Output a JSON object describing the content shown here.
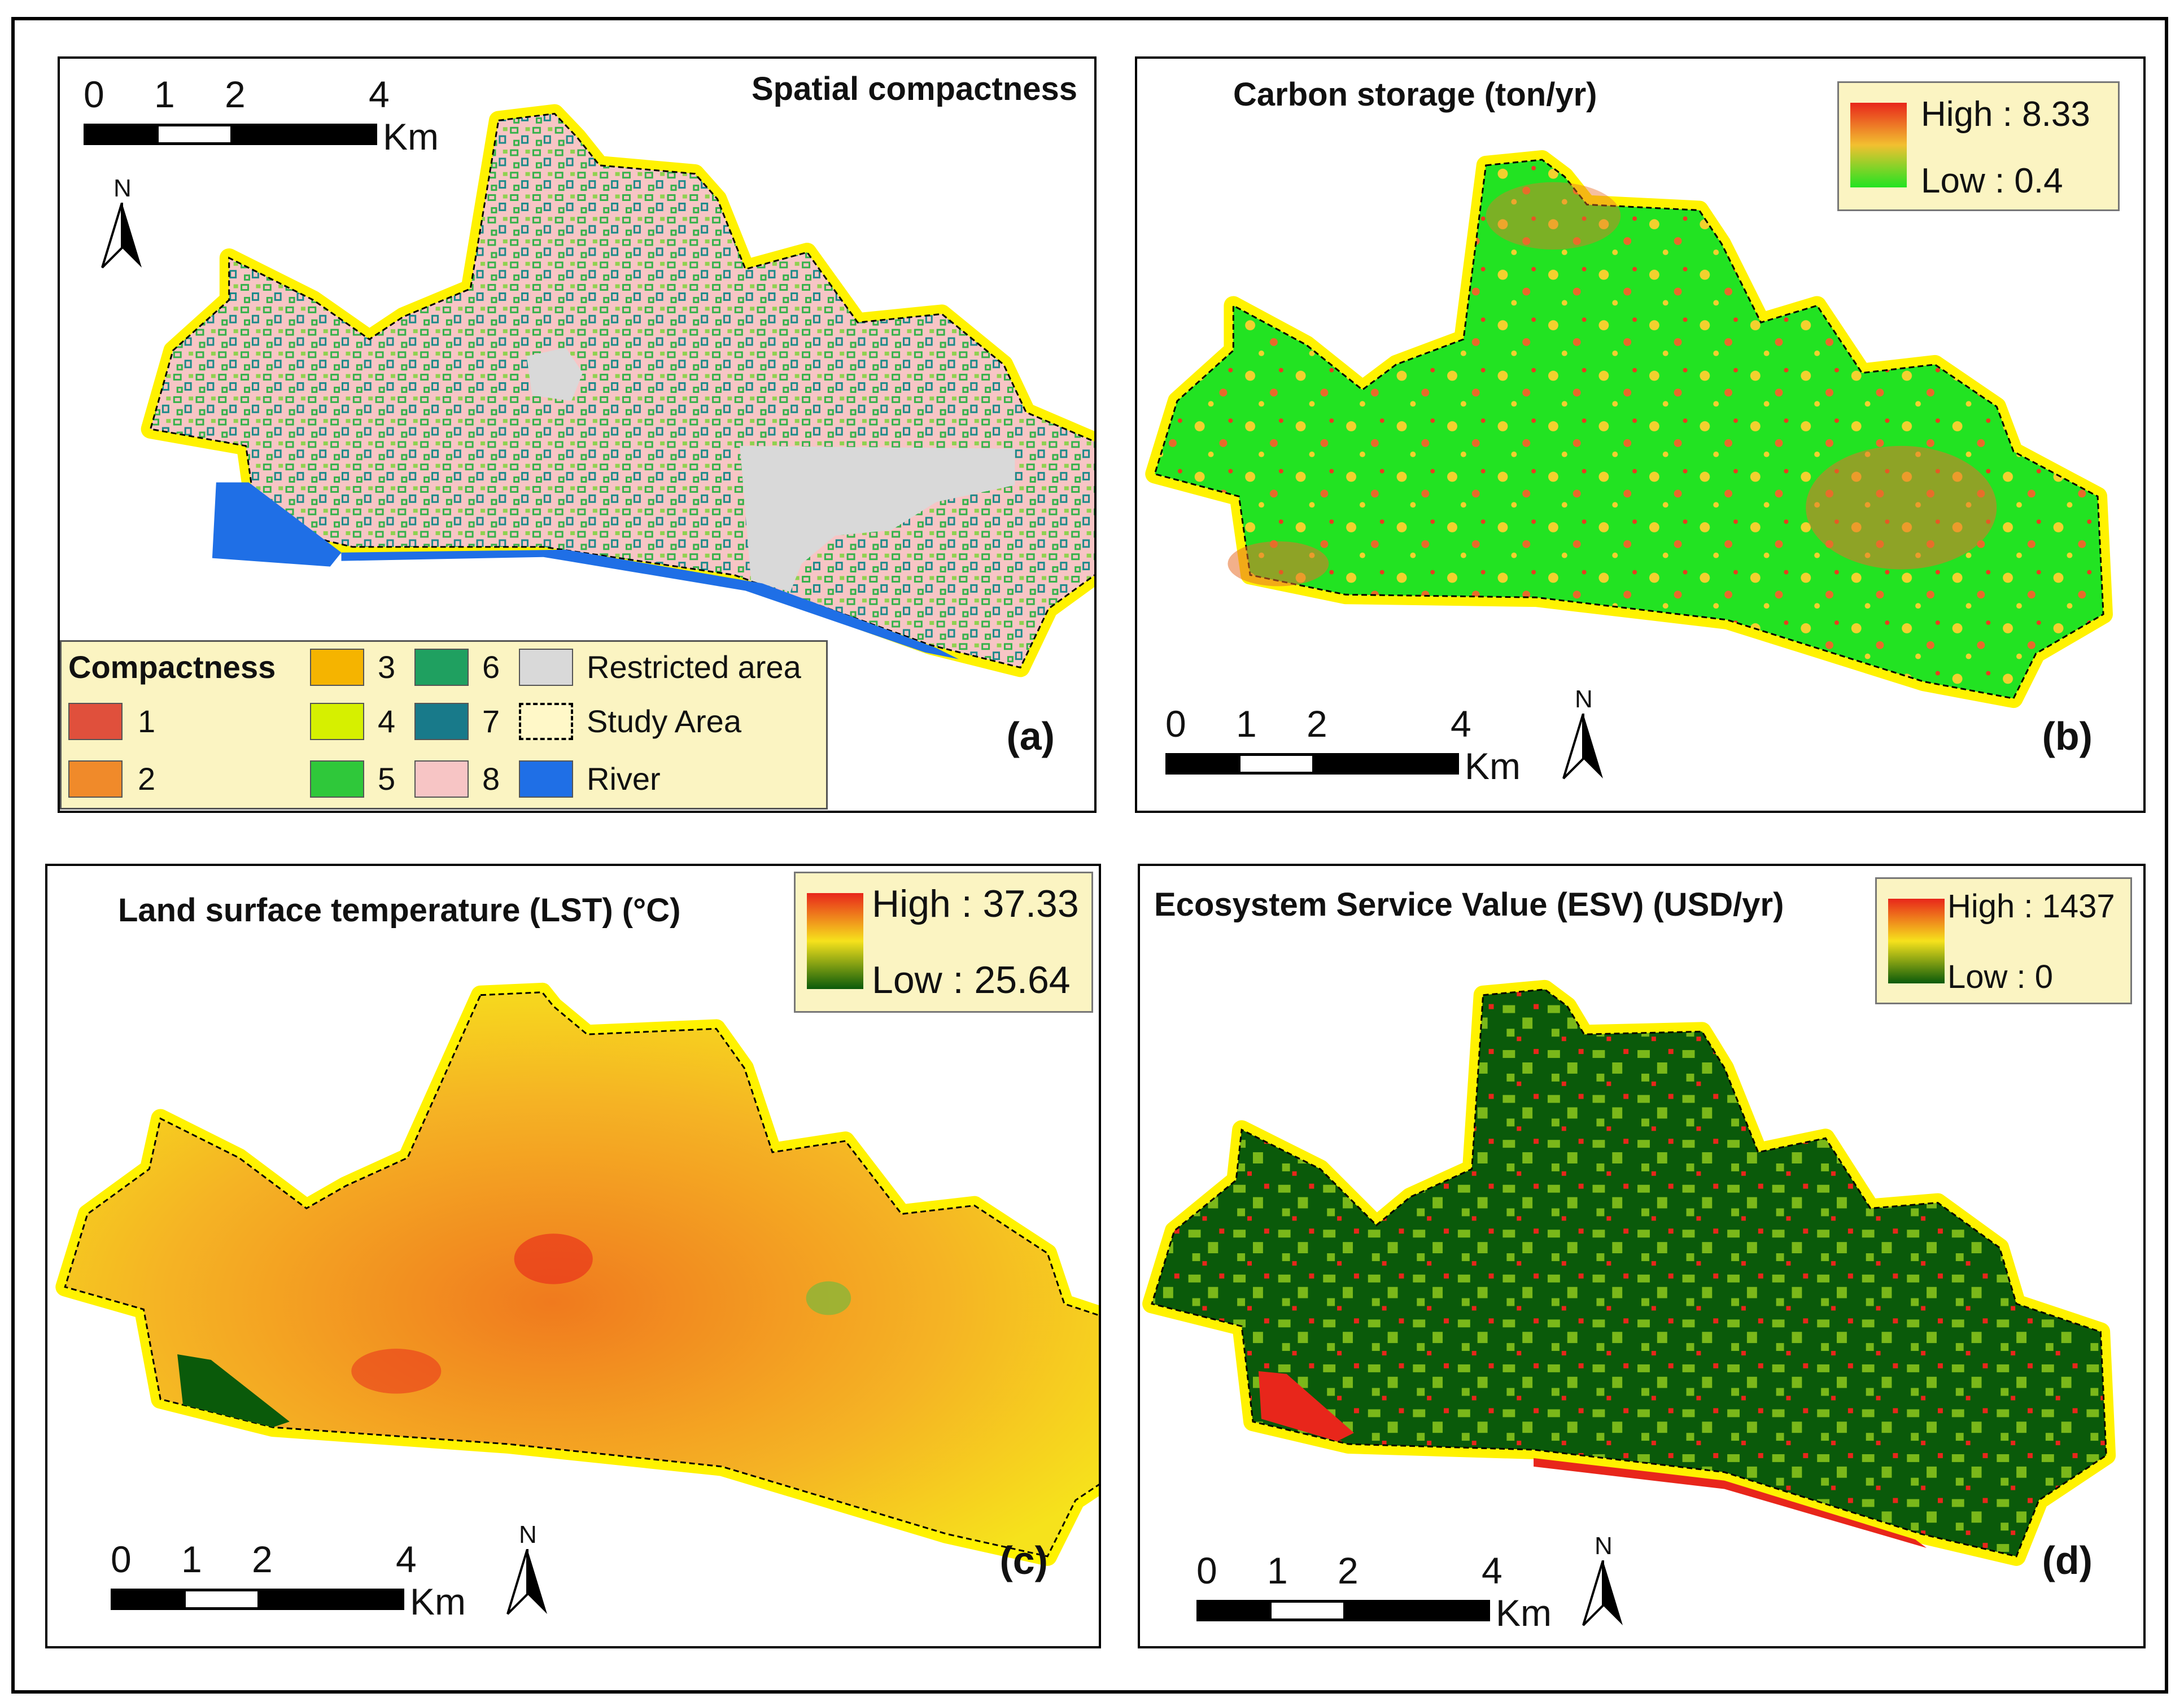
{
  "colors": {
    "study_halo": "#fff200",
    "pink_builtup": "#f7c5c5",
    "green_patch": "#34b24a",
    "teal_patch": "#1c8a8a",
    "restricted": "#d9d9d9",
    "river": "#1f6fe6",
    "carbon_high": "#e83c1e",
    "carbon_low": "#22e322",
    "lst_high": "#e8261b",
    "lst_low": "#0a5a0a",
    "esv_high": "#e8261b",
    "esv_low": "#0a5a0a"
  },
  "scale": {
    "ticks": [
      "0",
      "1",
      "2",
      "4"
    ],
    "unit": "Km"
  },
  "north_letter": "N",
  "panel_a": {
    "title": "Spatial compactness",
    "label": "(a)",
    "legend": {
      "title": "Compactness",
      "items": [
        {
          "label": "1",
          "color": "#e0503c"
        },
        {
          "label": "2",
          "color": "#f08a2a"
        },
        {
          "label": "3",
          "color": "#f5b400"
        },
        {
          "label": "4",
          "color": "#d6f000"
        },
        {
          "label": "5",
          "color": "#2fc83a"
        },
        {
          "label": "6",
          "color": "#1fa060"
        },
        {
          "label": "7",
          "color": "#187a8a"
        },
        {
          "label": "8",
          "color": "#f7c5c5"
        },
        {
          "label": "Restricted area",
          "color": "#d9d9d9"
        },
        {
          "label": "Study Area",
          "color": "#fff8c8"
        },
        {
          "label": "River",
          "color": "#1f6fe6"
        }
      ]
    }
  },
  "panel_b": {
    "title": "Carbon storage (ton/yr)",
    "label": "(b)",
    "high": "High : 8.33",
    "low": "Low : 0.4"
  },
  "panel_c": {
    "title": "Land surface temperature (LST) (°C)",
    "label": "(c)",
    "high": "High : 37.33",
    "low": "Low : 25.64"
  },
  "panel_d": {
    "title": "Ecosystem Service Value (ESV) (USD/yr)",
    "label": "(d)",
    "high": "High : 1437",
    "low": "Low : 0"
  }
}
